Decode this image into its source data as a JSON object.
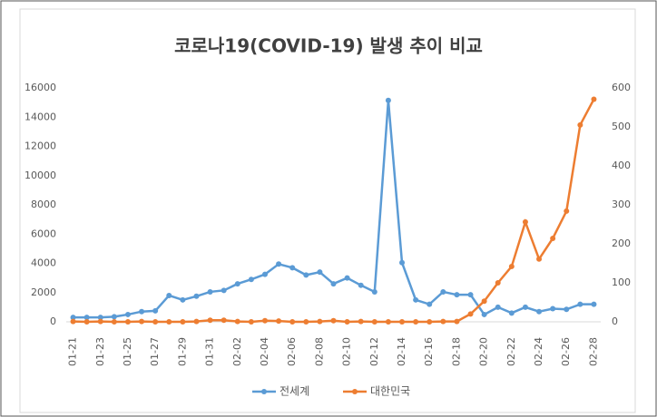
{
  "chart_data": {
    "type": "line",
    "title": "코로나19(COVID-19) 발생 추이 비교",
    "categories": [
      "01-21",
      null,
      "01-23",
      null,
      "01-25",
      null,
      "01-27",
      null,
      "01-29",
      null,
      "01-31",
      null,
      "02-02",
      null,
      "02-04",
      null,
      "02-06",
      null,
      "02-08",
      null,
      "02-10",
      null,
      "02-12",
      null,
      "02-14",
      null,
      "02-16",
      null,
      "02-18",
      null,
      "02-20",
      null,
      "02-22",
      null,
      "02-24",
      null,
      "02-26",
      null,
      "02-28"
    ],
    "series": [
      {
        "name": "전세계",
        "color": "#5b9bd5",
        "values": [
          300,
          300,
          300,
          350,
          500,
          700,
          750,
          1800,
          1500,
          1750,
          2050,
          2150,
          2600,
          2900,
          3250,
          3950,
          3700,
          3200,
          3400,
          2600,
          3000,
          2500,
          2050,
          15150,
          4050,
          1500,
          1200,
          2050,
          1850,
          1850,
          500,
          1000,
          600,
          1000,
          700,
          900,
          850,
          1200,
          1200
        ]
      },
      {
        "name": "대한민국",
        "color": "#ed7d31",
        "axis": "y2",
        "values": [
          1,
          0,
          1,
          0,
          0,
          1,
          0,
          0,
          0,
          1,
          4,
          4,
          1,
          0,
          3,
          2,
          0,
          0,
          1,
          3,
          0,
          1,
          0,
          0,
          0,
          0,
          0,
          1,
          1,
          20,
          53,
          100,
          142,
          256,
          161,
          214,
          284,
          505,
          571
        ]
      }
    ],
    "ylim": [
      0,
      16000
    ],
    "yticks": [
      0,
      2000,
      4000,
      6000,
      8000,
      10000,
      12000,
      14000,
      16000
    ],
    "y2lim": [
      0,
      600
    ],
    "y2ticks": [
      0,
      100,
      200,
      300,
      400,
      500,
      600
    ],
    "grid": false,
    "legend": "bottom"
  }
}
